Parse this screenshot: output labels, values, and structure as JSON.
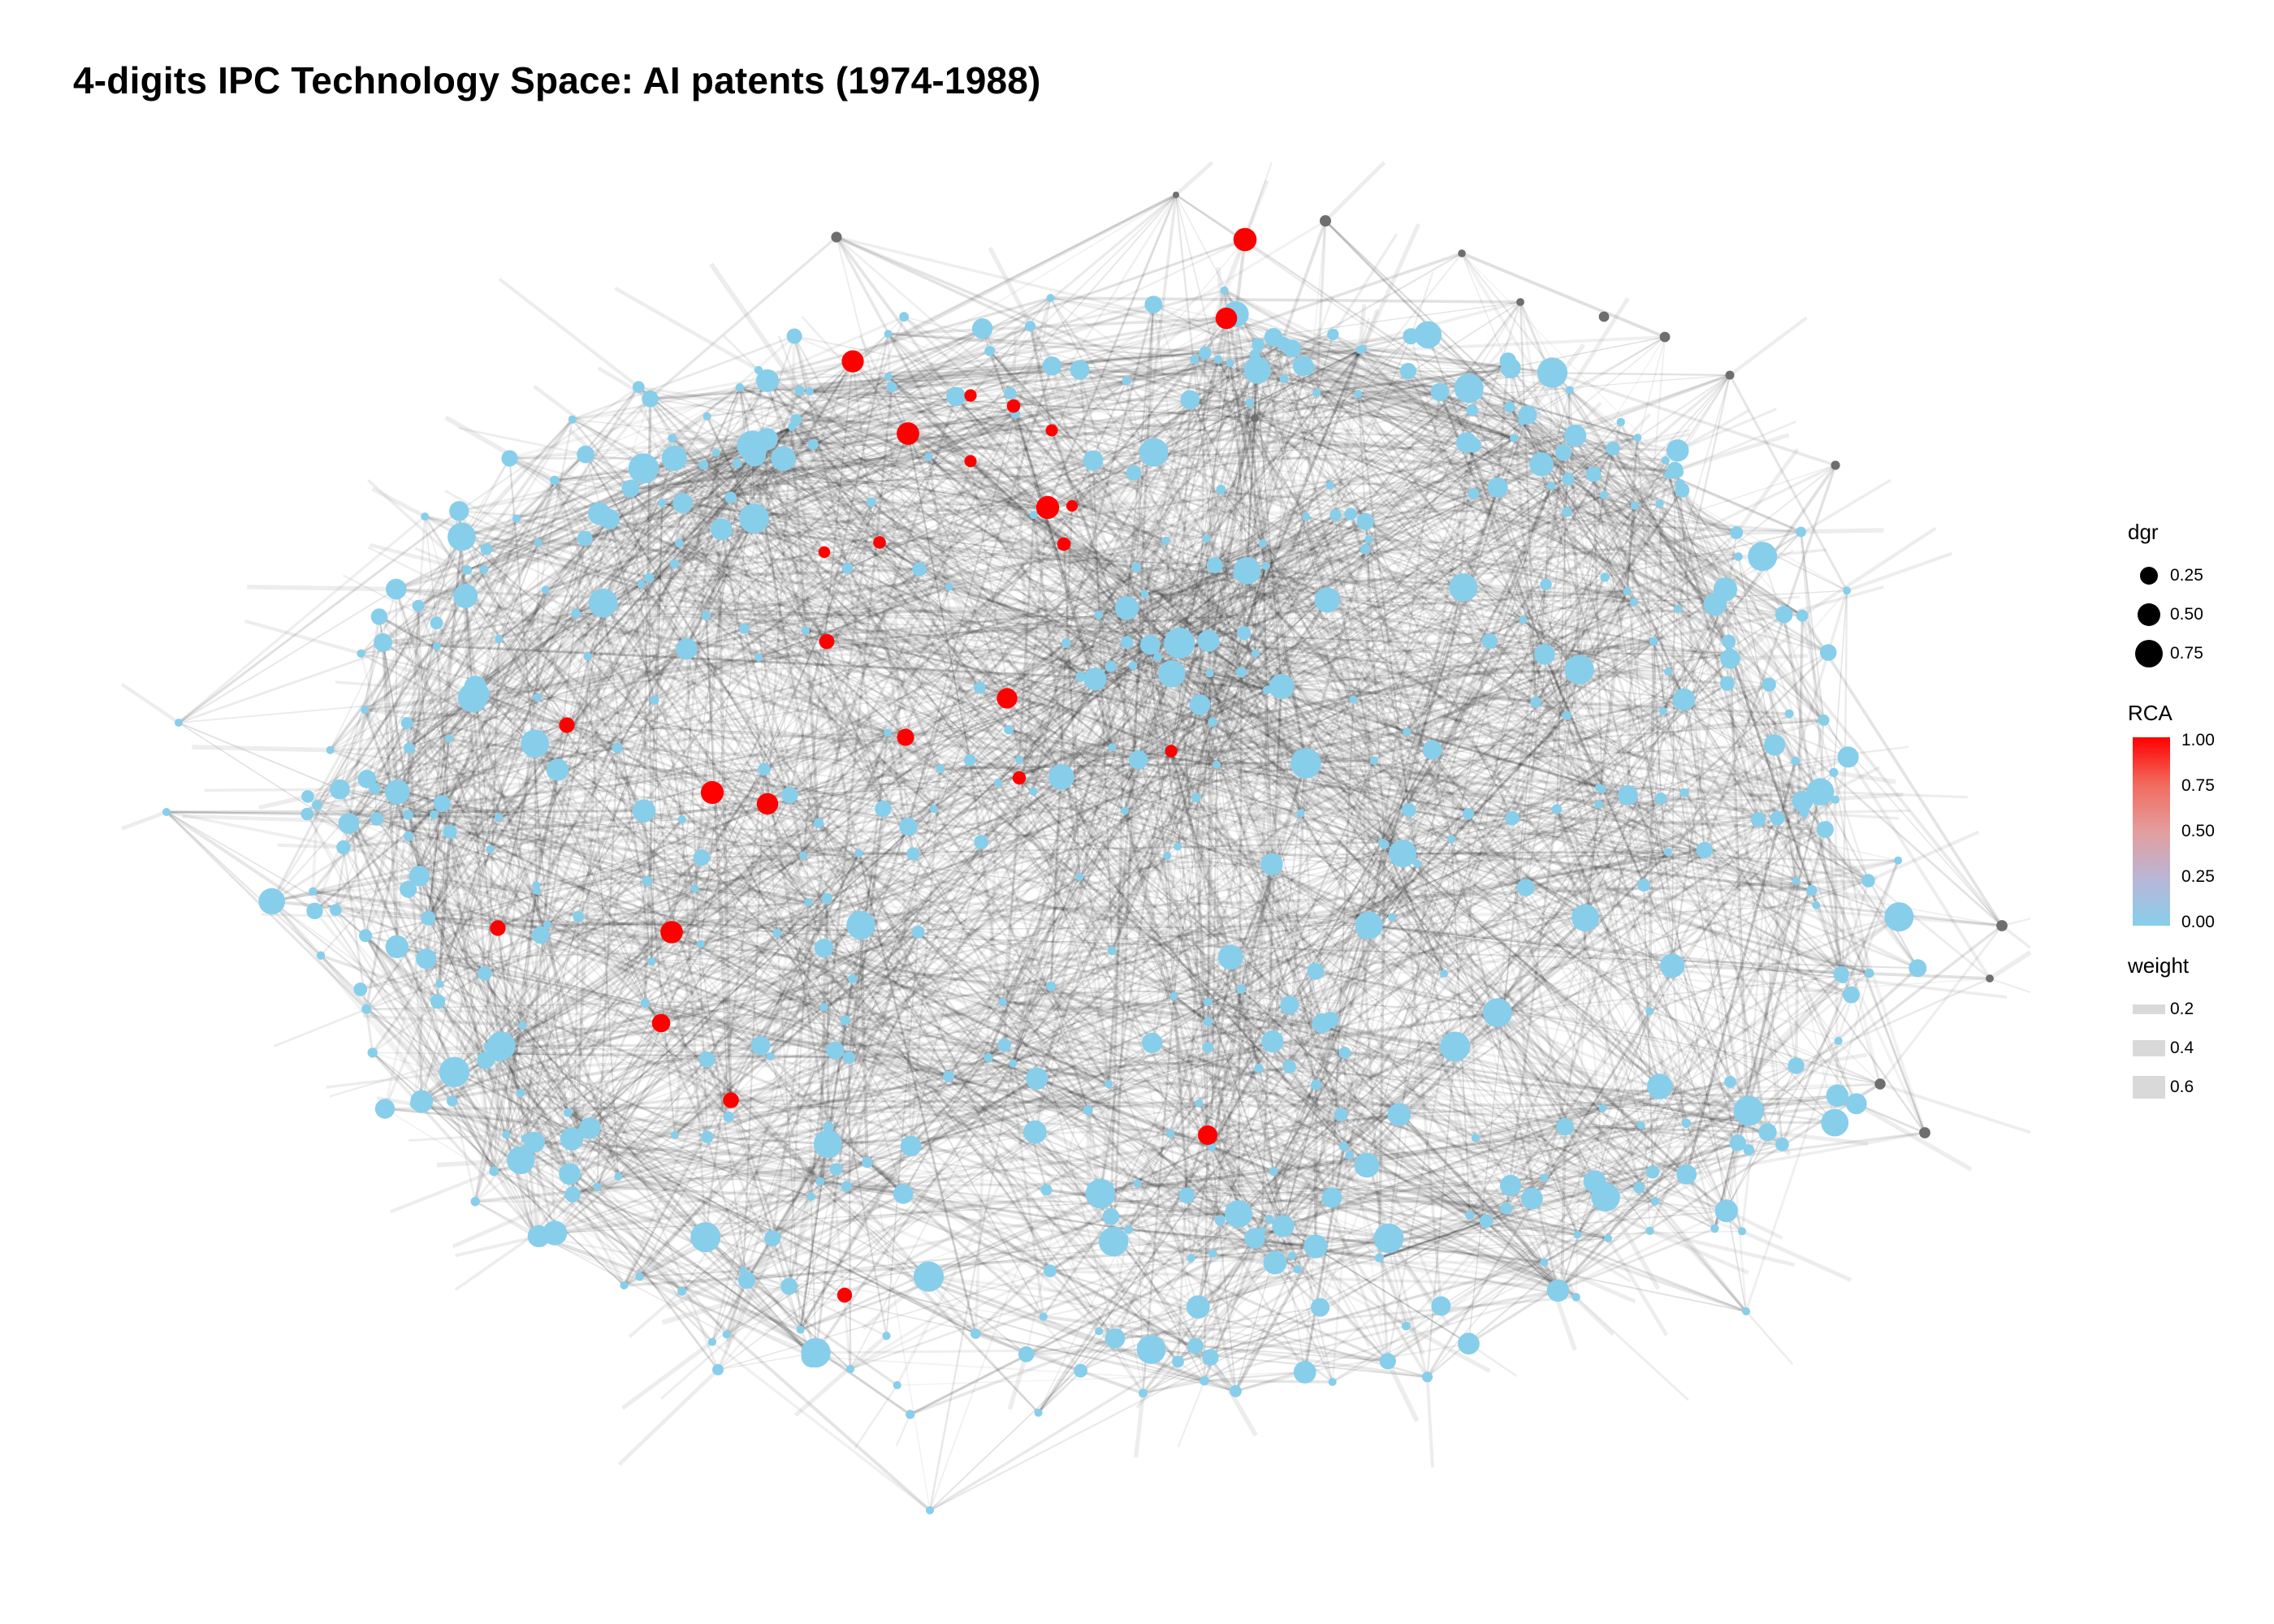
{
  "title": "4-digits IPC Technology Space: AI patents (1974-1988)",
  "legend": {
    "size": {
      "title": "dgr",
      "items": [
        {
          "label": "0.25",
          "value": 0.25
        },
        {
          "label": "0.50",
          "value": 0.5
        },
        {
          "label": "0.75",
          "value": 0.75
        }
      ]
    },
    "color": {
      "title": "RCA",
      "ticks": [
        "1.00",
        "0.75",
        "0.50",
        "0.25",
        "0.00"
      ],
      "low_color": "#87ceeb",
      "high_color": "#ff0000"
    },
    "weight": {
      "title": "weight",
      "items": [
        {
          "label": "0.2",
          "value": 0.2
        },
        {
          "label": "0.4",
          "value": 0.4
        },
        {
          "label": "0.6",
          "value": 0.6
        }
      ]
    }
  },
  "colors": {
    "node_low_rca": "#87ceeb",
    "node_high_rca": "#ff0000",
    "node_isolated": "#6e6e6e",
    "edge": "#1a1a1a"
  }
}
